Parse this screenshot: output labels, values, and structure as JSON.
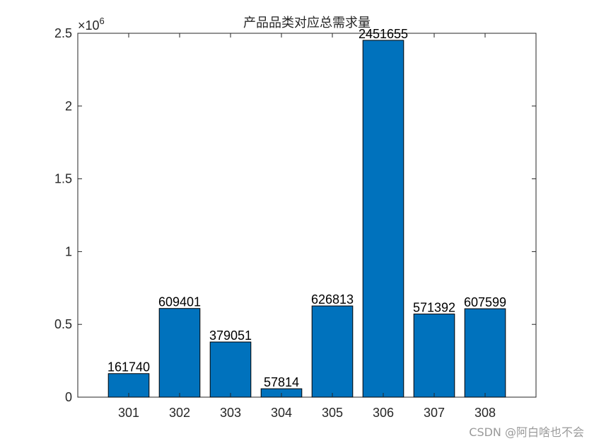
{
  "chart_data": {
    "type": "bar",
    "title": "产品品类对应总需求量",
    "categories": [
      "301",
      "302",
      "303",
      "304",
      "305",
      "306",
      "307",
      "308"
    ],
    "values": [
      161740,
      609401,
      379051,
      57814,
      626813,
      2451655,
      571392,
      607599
    ],
    "data_labels": [
      "161740",
      "609401",
      "379051",
      "57814",
      "626813",
      "2451655",
      "571392",
      "607599"
    ],
    "xlabel": "",
    "ylabel": "",
    "ylim": [
      0,
      2500000
    ],
    "yticks": [
      0,
      500000,
      1000000,
      1500000,
      2000000,
      2500000
    ],
    "ytick_labels": [
      "0",
      "0.5",
      "1",
      "1.5",
      "2",
      "2.5"
    ],
    "y_exponent_base": "×10",
    "y_exponent_power": "6",
    "bar_color": "#0072BD",
    "grid": false,
    "legend": "none"
  },
  "watermark": "CSDN @阿白啥也不会"
}
